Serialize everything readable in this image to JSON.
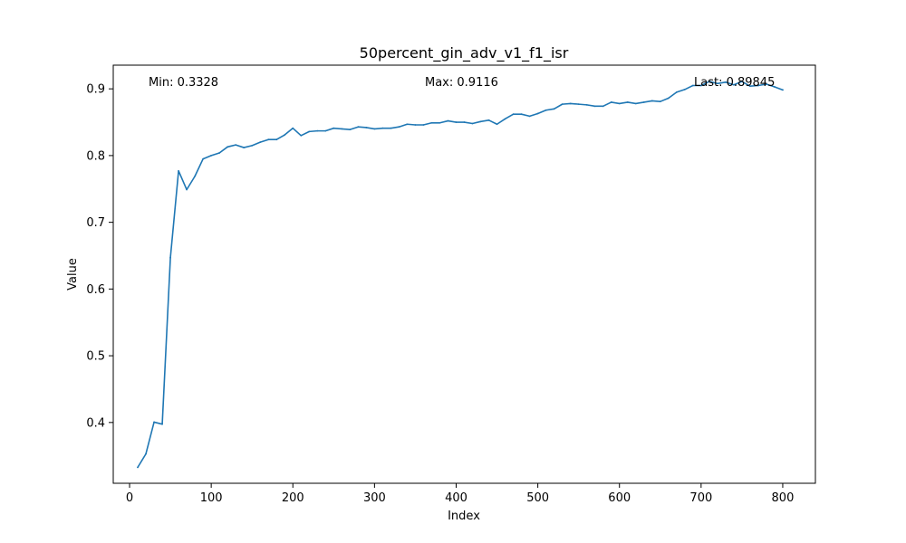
{
  "chart_data": {
    "type": "line",
    "title": "50percent_gin_adv_v1_f1_isr",
    "xlabel": "Index",
    "ylabel": "Value",
    "xlim": [
      -20,
      840
    ],
    "ylim": [
      0.3089,
      0.9355
    ],
    "xticks": [
      0,
      100,
      200,
      300,
      400,
      500,
      600,
      700,
      800
    ],
    "yticks": [
      0.4,
      0.5,
      0.6,
      0.7,
      0.8,
      0.9
    ],
    "grid": false,
    "line_color": "#1f77b4",
    "annotations": {
      "min": "Min: 0.3328",
      "max": "Max: 0.9116",
      "last": "Last: 0.89845"
    },
    "series": [
      {
        "x": [
          10,
          20,
          30,
          40,
          50,
          60,
          70,
          80,
          90,
          100,
          110,
          120,
          130,
          140,
          150,
          160,
          170,
          180,
          190,
          200,
          210,
          220,
          230,
          240,
          250,
          260,
          270,
          280,
          290,
          300,
          310,
          320,
          330,
          340,
          350,
          360,
          370,
          380,
          390,
          400,
          410,
          420,
          430,
          440,
          450,
          460,
          470,
          480,
          490,
          500,
          510,
          520,
          530,
          540,
          550,
          560,
          570,
          580,
          590,
          600,
          610,
          620,
          630,
          640,
          650,
          660,
          670,
          680,
          690,
          700,
          710,
          720,
          730,
          740,
          750,
          760,
          770,
          780,
          790,
          800
        ],
        "y": [
          0.3328,
          0.353,
          0.4005,
          0.3975,
          0.647,
          0.777,
          0.749,
          0.769,
          0.795,
          0.8,
          0.804,
          0.813,
          0.816,
          0.812,
          0.815,
          0.82,
          0.824,
          0.824,
          0.831,
          0.841,
          0.83,
          0.836,
          0.837,
          0.837,
          0.841,
          0.84,
          0.839,
          0.843,
          0.842,
          0.84,
          0.841,
          0.841,
          0.843,
          0.847,
          0.846,
          0.846,
          0.849,
          0.849,
          0.852,
          0.85,
          0.85,
          0.848,
          0.851,
          0.853,
          0.847,
          0.855,
          0.862,
          0.862,
          0.859,
          0.863,
          0.868,
          0.87,
          0.877,
          0.878,
          0.877,
          0.876,
          0.874,
          0.874,
          0.88,
          0.878,
          0.88,
          0.878,
          0.88,
          0.882,
          0.881,
          0.886,
          0.895,
          0.899,
          0.905,
          0.905,
          0.911,
          0.908,
          0.91,
          0.906,
          0.911,
          0.904,
          0.905,
          0.907,
          0.903,
          0.89845
        ]
      }
    ]
  }
}
